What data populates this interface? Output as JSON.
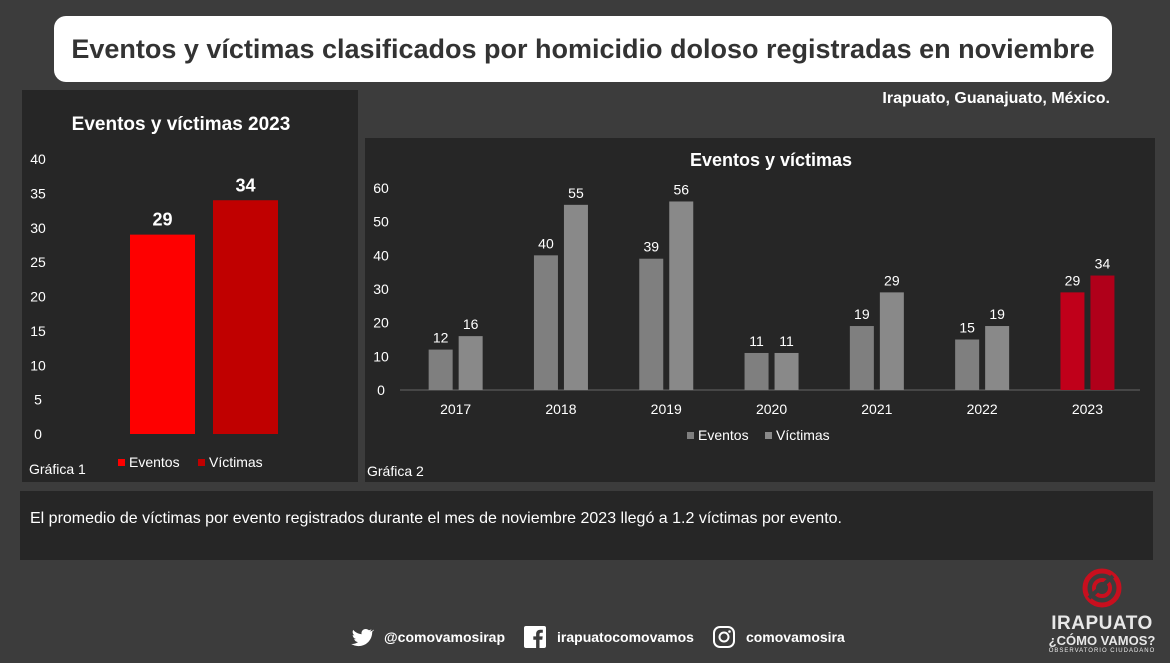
{
  "header": {
    "title": "Eventos y víctimas clasificados por homicidio doloso registradas en noviembre"
  },
  "location": "Irapuato, Guanajuato, México.",
  "note": "El promedio de víctimas por evento registrados durante el mes de noviembre 2023 llegó a 1.2 víctimas por evento.",
  "footer": {
    "twitter": "@comovamosirap",
    "facebook": "irapuatocomovamos",
    "instagram": "comovamosira"
  },
  "logo": {
    "line1": "IRAPUATO",
    "line2": "¿CÓMO VAMOS?",
    "line3": "OBSERVATORIO CIUDADANO"
  },
  "colors": {
    "eventos": "#fe0000",
    "victimas": "#c00000",
    "gray_eventos": "#7f7f7f",
    "gray_victimas": "#898989",
    "highlight_eventos": "#c0001a",
    "highlight_victimas": "#b0001a"
  },
  "chart_data": [
    {
      "type": "bar",
      "title": "Eventos y víctimas 2023",
      "caption": "Gráfica 1",
      "categories": [
        "Eventos",
        "Víctimas"
      ],
      "values": [
        29,
        34
      ],
      "ylim": [
        0,
        40
      ],
      "yticks": [
        0,
        5,
        10,
        15,
        20,
        25,
        30,
        35,
        40
      ],
      "legend": [
        "Eventos",
        "Víctimas"
      ]
    },
    {
      "type": "bar",
      "title": "Eventos y víctimas",
      "caption": "Gráfica 2",
      "categories": [
        "2017",
        "2018",
        "2019",
        "2020",
        "2021",
        "2022",
        "2023"
      ],
      "series": [
        {
          "name": "Eventos",
          "values": [
            12,
            40,
            39,
            11,
            19,
            15,
            29
          ]
        },
        {
          "name": "Víctimas",
          "values": [
            16,
            55,
            56,
            11,
            29,
            19,
            34
          ]
        }
      ],
      "ylim": [
        0,
        60
      ],
      "yticks": [
        0,
        10,
        20,
        30,
        40,
        50,
        60
      ],
      "legend": [
        "Eventos",
        "Víctimas"
      ]
    }
  ]
}
